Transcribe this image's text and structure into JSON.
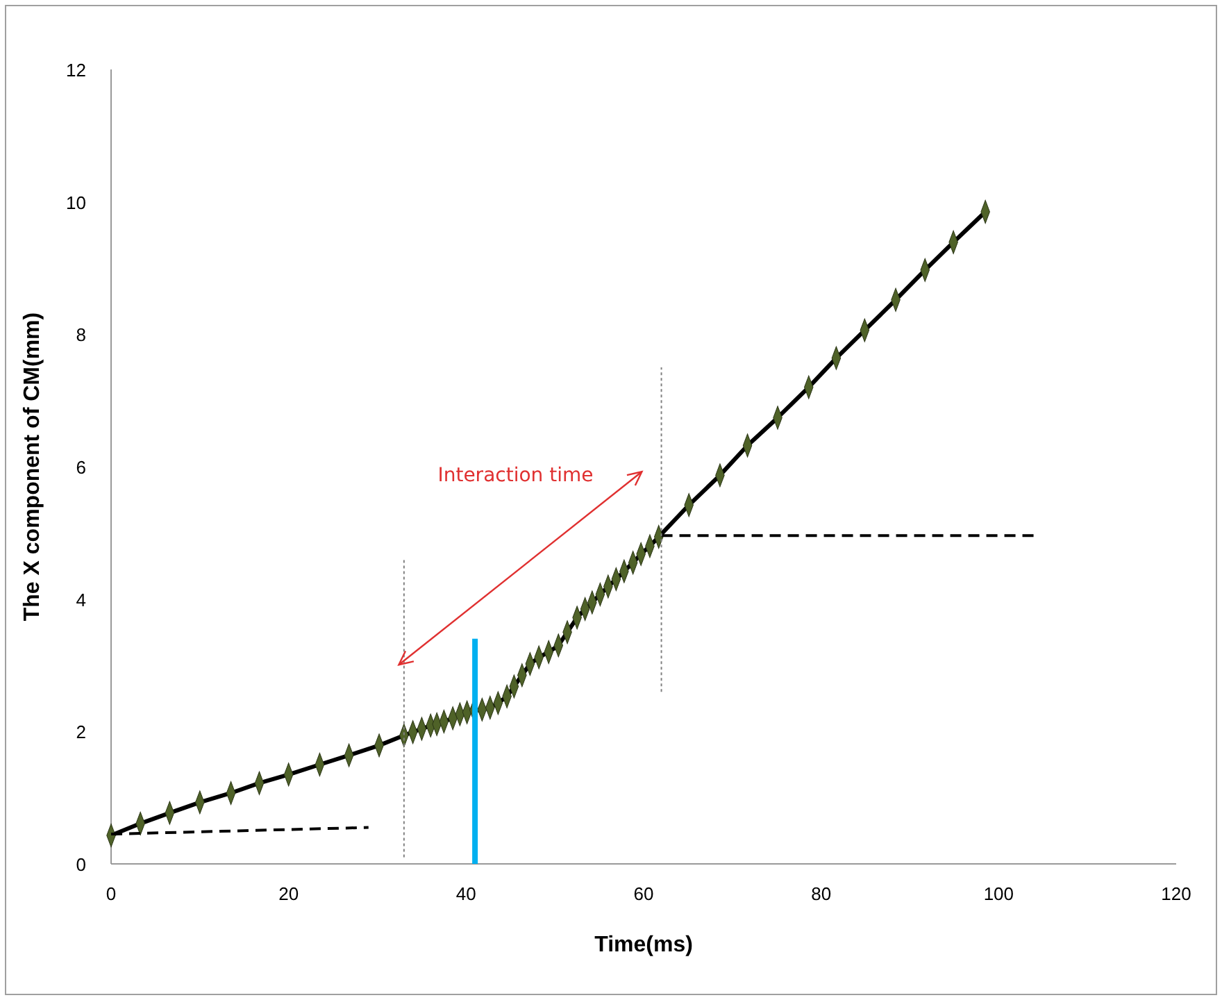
{
  "chart_data": {
    "type": "line",
    "xlabel": "Time(ms)",
    "ylabel": "The X component of CM(mm)",
    "xlim": [
      0,
      120
    ],
    "xticks": [
      0,
      20,
      40,
      60,
      80,
      100,
      120
    ],
    "ylim": [
      0,
      12
    ],
    "yticks": [
      0,
      2,
      4,
      6,
      8,
      10,
      12
    ],
    "grid": false,
    "series": [
      {
        "color": "#000000",
        "marker": "diamond",
        "line_style": "solid",
        "x": [
          0,
          3.3,
          6.6,
          10,
          13.5,
          16.7,
          20,
          23.5,
          26.8,
          30.2,
          33,
          34,
          35,
          36,
          36.7,
          37.5,
          38.5,
          39.3,
          40.1,
          40.9,
          41.8,
          42.7,
          43.6,
          44.6,
          45.4,
          46.3,
          47.2,
          48.2,
          49.3,
          50.4,
          51.4,
          52.5,
          53.4,
          54.2,
          55.1,
          56,
          56.9,
          57.8,
          58.8,
          59.7,
          60.7,
          61.7,
          65.1,
          68.6,
          71.7,
          75.1,
          78.6,
          81.7,
          84.9,
          88.4,
          91.7,
          94.9,
          98.5
        ],
        "values": [
          0.43,
          0.61,
          0.77,
          0.93,
          1.07,
          1.22,
          1.35,
          1.5,
          1.64,
          1.79,
          1.94,
          1.99,
          2.04,
          2.09,
          2.11,
          2.15,
          2.2,
          2.26,
          2.29,
          2.32,
          2.33,
          2.36,
          2.43,
          2.53,
          2.68,
          2.85,
          3.02,
          3.12,
          3.2,
          3.3,
          3.5,
          3.72,
          3.85,
          3.95,
          4.07,
          4.19,
          4.3,
          4.42,
          4.55,
          4.68,
          4.8,
          4.94,
          5.42,
          5.87,
          6.32,
          6.74,
          7.2,
          7.64,
          8.06,
          8.52,
          8.97,
          9.39,
          9.85
        ]
      },
      {
        "color": "#000000",
        "marker": "none",
        "line_style": "dashed",
        "x": [
          0,
          29
        ],
        "values": [
          0.45,
          0.55
        ]
      },
      {
        "color": "#000000",
        "marker": "none",
        "line_style": "dashed",
        "x": [
          62,
          104
        ],
        "values": [
          4.96,
          4.96
        ]
      },
      {
        "color": "#808080",
        "marker": "none",
        "line_style": "dotted",
        "x": [
          33,
          33
        ],
        "values": [
          0.1,
          4.6
        ]
      },
      {
        "color": "#808080",
        "marker": "none",
        "line_style": "dotted",
        "x": [
          62,
          62
        ],
        "values": [
          2.6,
          7.5
        ]
      },
      {
        "color": "#00b0f0",
        "marker": "none",
        "line_style": "solid",
        "x": [
          41,
          41
        ],
        "values": [
          0,
          3.4
        ]
      }
    ],
    "annotations": [
      "Interaction time"
    ]
  }
}
